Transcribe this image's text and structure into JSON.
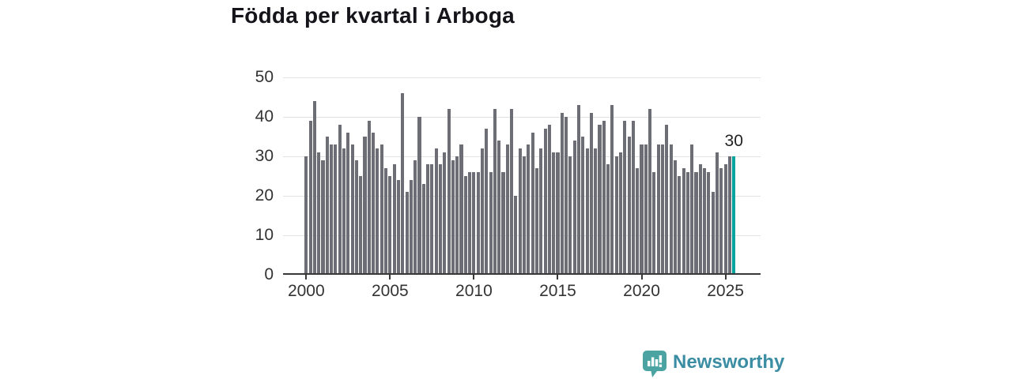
{
  "title": "Födda per kvartal i Arboga",
  "annotation": {
    "last_value_label": "30"
  },
  "footer": {
    "brand": "Newsworthy",
    "icon": "newsworthy-speech-bubble-chart-icon"
  },
  "colors": {
    "bar": "#6d6d75",
    "highlight": "#00a49c",
    "axis": "#383838",
    "grid": "#e2e2e2",
    "title_text": "#14141a",
    "tick_text": "#333333",
    "brand_text": "#3b8da3",
    "brand_icon": "#4ba4a1"
  },
  "chart_data": {
    "type": "bar",
    "title": "Födda per kvartal i Arboga",
    "x_unit": "quarter",
    "x_start": "2000-Q1",
    "x_end": "2025-Q3",
    "x_tick_labels": [
      "2000",
      "2005",
      "2010",
      "2015",
      "2020",
      "2025"
    ],
    "x_tick_indices": [
      0,
      20,
      40,
      60,
      80,
      100
    ],
    "y_ticks": [
      0,
      10,
      20,
      30,
      40,
      50
    ],
    "ylim": [
      0,
      50
    ],
    "grid": "horizontal",
    "legend": "none",
    "highlight_last_bar": true,
    "last_bar_label": "30",
    "series": [
      {
        "name": "Födda",
        "values": [
          30,
          39,
          44,
          31,
          29,
          35,
          33,
          33,
          38,
          32,
          36,
          33,
          29,
          25,
          35,
          39,
          36,
          32,
          33,
          27,
          25,
          28,
          24,
          46,
          21,
          24,
          29,
          40,
          23,
          28,
          28,
          32,
          28,
          31,
          42,
          29,
          30,
          33,
          25,
          26,
          26,
          26,
          32,
          37,
          26,
          42,
          34,
          26,
          33,
          42,
          20,
          32,
          30,
          33,
          36,
          27,
          32,
          37,
          38,
          31,
          31,
          41,
          40,
          30,
          34,
          43,
          35,
          32,
          41,
          32,
          38,
          39,
          28,
          43,
          30,
          31,
          39,
          35,
          39,
          27,
          33,
          33,
          42,
          26,
          33,
          33,
          38,
          33,
          29,
          25,
          27,
          26,
          33,
          26,
          28,
          27,
          26,
          21,
          31,
          27,
          28,
          30,
          30
        ]
      }
    ]
  }
}
